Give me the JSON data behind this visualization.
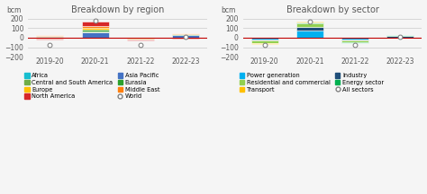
{
  "left_title": "Breakdown by region",
  "right_title": "Breakdown by sector",
  "categories": [
    "2019-20",
    "2020-21",
    "2021-22",
    "2022-23"
  ],
  "ylabel": "bcm",
  "ylim": [
    -200,
    230
  ],
  "yticks": [
    -200,
    -100,
    0,
    100,
    200
  ],
  "bg_color": "#f5f5f5",
  "region": {
    "Africa": [
      2,
      4,
      1,
      2
    ],
    "Asia Pacific": [
      12,
      55,
      -3,
      25
    ],
    "Central and South America": [
      3,
      8,
      2,
      3
    ],
    "Eurasia": [
      4,
      20,
      -5,
      4
    ],
    "Europe": [
      -8,
      18,
      -8,
      8
    ],
    "Middle East": [
      4,
      15,
      -3,
      4
    ],
    "North America": [
      -8,
      55,
      -10,
      -5
    ],
    "World": [
      -75,
      180,
      -80,
      10
    ]
  },
  "region_colors": {
    "Africa": "#17becf",
    "Asia Pacific": "#4472c4",
    "Central and South America": "#70ad47",
    "Eurasia": "#2ca02c",
    "Europe": "#ffc000",
    "Middle East": "#ff7f0e",
    "North America": "#d62728",
    "World": "#ffffff"
  },
  "sector": {
    "Power generation": [
      -20,
      75,
      -20,
      -5
    ],
    "Industry": [
      -5,
      35,
      -10,
      20
    ],
    "Residential and commercial": [
      -30,
      45,
      -20,
      -8
    ],
    "Energy sector": [
      -5,
      10,
      -5,
      8
    ],
    "Transport": [
      -3,
      5,
      -3,
      2
    ],
    "All sectors": [
      -75,
      170,
      -75,
      12
    ]
  },
  "sector_colors": {
    "Power generation": "#00b0f0",
    "Industry": "#1f4e79",
    "Residential and commercial": "#92d050",
    "Energy sector": "#00b050",
    "Transport": "#ffc000",
    "All sectors": "#ffffff"
  },
  "title_color": "#595959",
  "tick_color": "#595959",
  "grid_color": "#d0d0d0",
  "zero_line_color": "#c00000",
  "legend_fontsize": 4.8,
  "title_fontsize": 7.0,
  "tick_fontsize": 5.5
}
